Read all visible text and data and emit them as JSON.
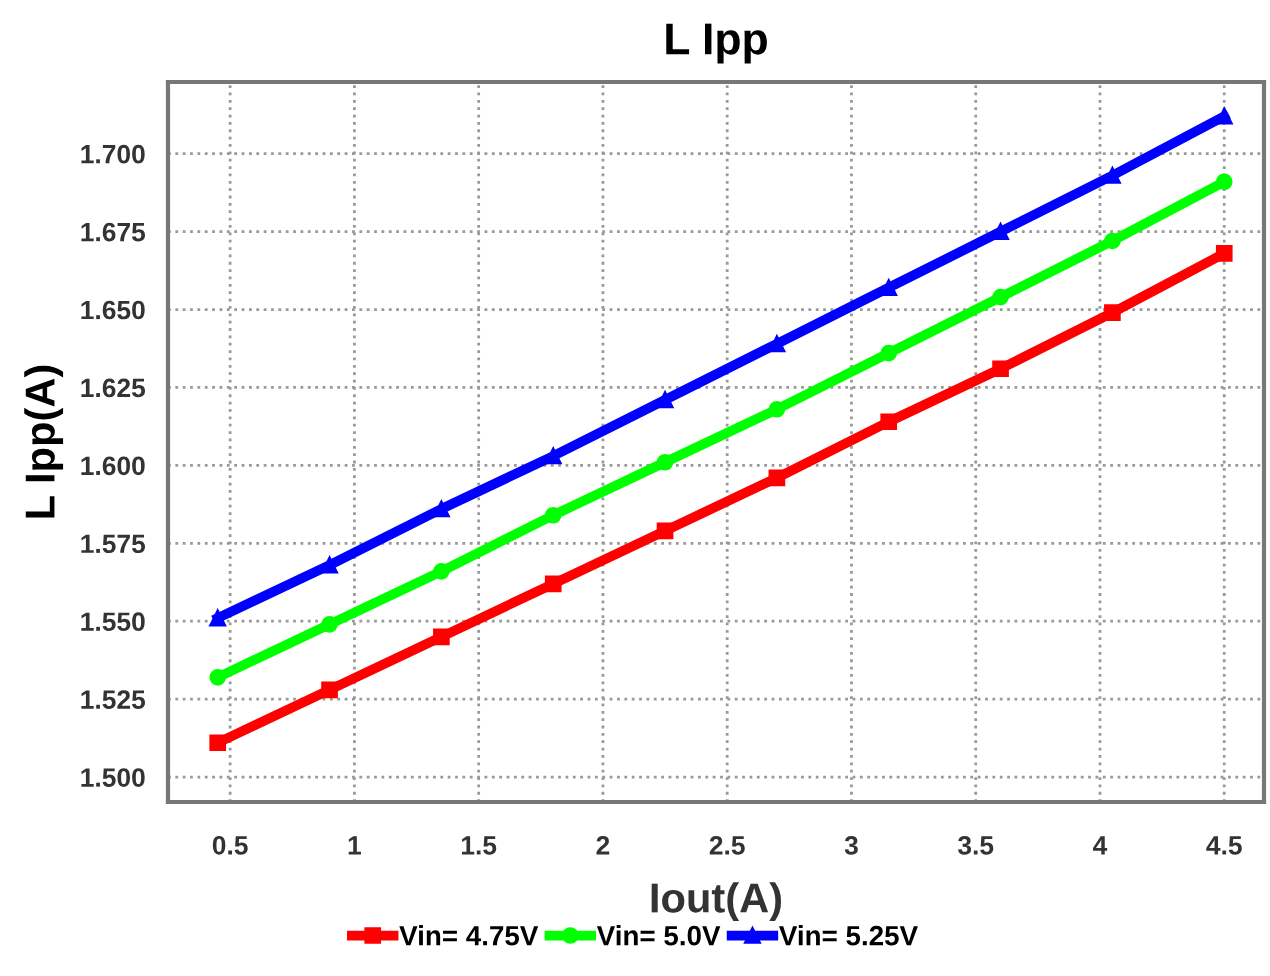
{
  "chart_data": {
    "type": "line",
    "title": "L Ipp",
    "xlabel": "Iout(A)",
    "ylabel": "L Ipp(A)",
    "x": [
      0.45,
      0.9,
      1.35,
      1.8,
      2.25,
      2.7,
      3.15,
      3.6,
      4.05,
      4.5
    ],
    "series": [
      {
        "name": "Vin= 4.75V",
        "color": "#ff0000",
        "marker": "square",
        "values": [
          1.511,
          1.528,
          1.545,
          1.562,
          1.579,
          1.596,
          1.614,
          1.631,
          1.649,
          1.668
        ]
      },
      {
        "name": "Vin= 5.0V",
        "color": "#00ff00",
        "marker": "circle",
        "values": [
          1.532,
          1.549,
          1.566,
          1.584,
          1.601,
          1.618,
          1.636,
          1.654,
          1.672,
          1.691
        ]
      },
      {
        "name": "Vin= 5.25V",
        "color": "#0000ff",
        "marker": "triangle",
        "values": [
          1.551,
          1.568,
          1.586,
          1.603,
          1.621,
          1.639,
          1.657,
          1.675,
          1.693,
          1.712
        ]
      }
    ],
    "xlim": [
      0.25,
      4.66
    ],
    "ylim": [
      1.492,
      1.723
    ],
    "xticks": [
      0.5,
      1,
      1.5,
      2,
      2.5,
      3,
      3.5,
      4,
      4.5
    ],
    "yticks": [
      {
        "value": 1.5,
        "label": "1.500"
      },
      {
        "value": 1.525,
        "label": "1.525"
      },
      {
        "value": 1.55,
        "label": "1.550"
      },
      {
        "value": 1.575,
        "label": "1.575"
      },
      {
        "value": 1.6,
        "label": "1.600"
      },
      {
        "value": 1.625,
        "label": "1.625"
      },
      {
        "value": 1.65,
        "label": "1.650"
      },
      {
        "value": 1.675,
        "label": "1.675"
      },
      {
        "value": 1.7,
        "label": "1.700"
      }
    ],
    "grid": true,
    "legend": "bottom",
    "line_style": "solid"
  }
}
